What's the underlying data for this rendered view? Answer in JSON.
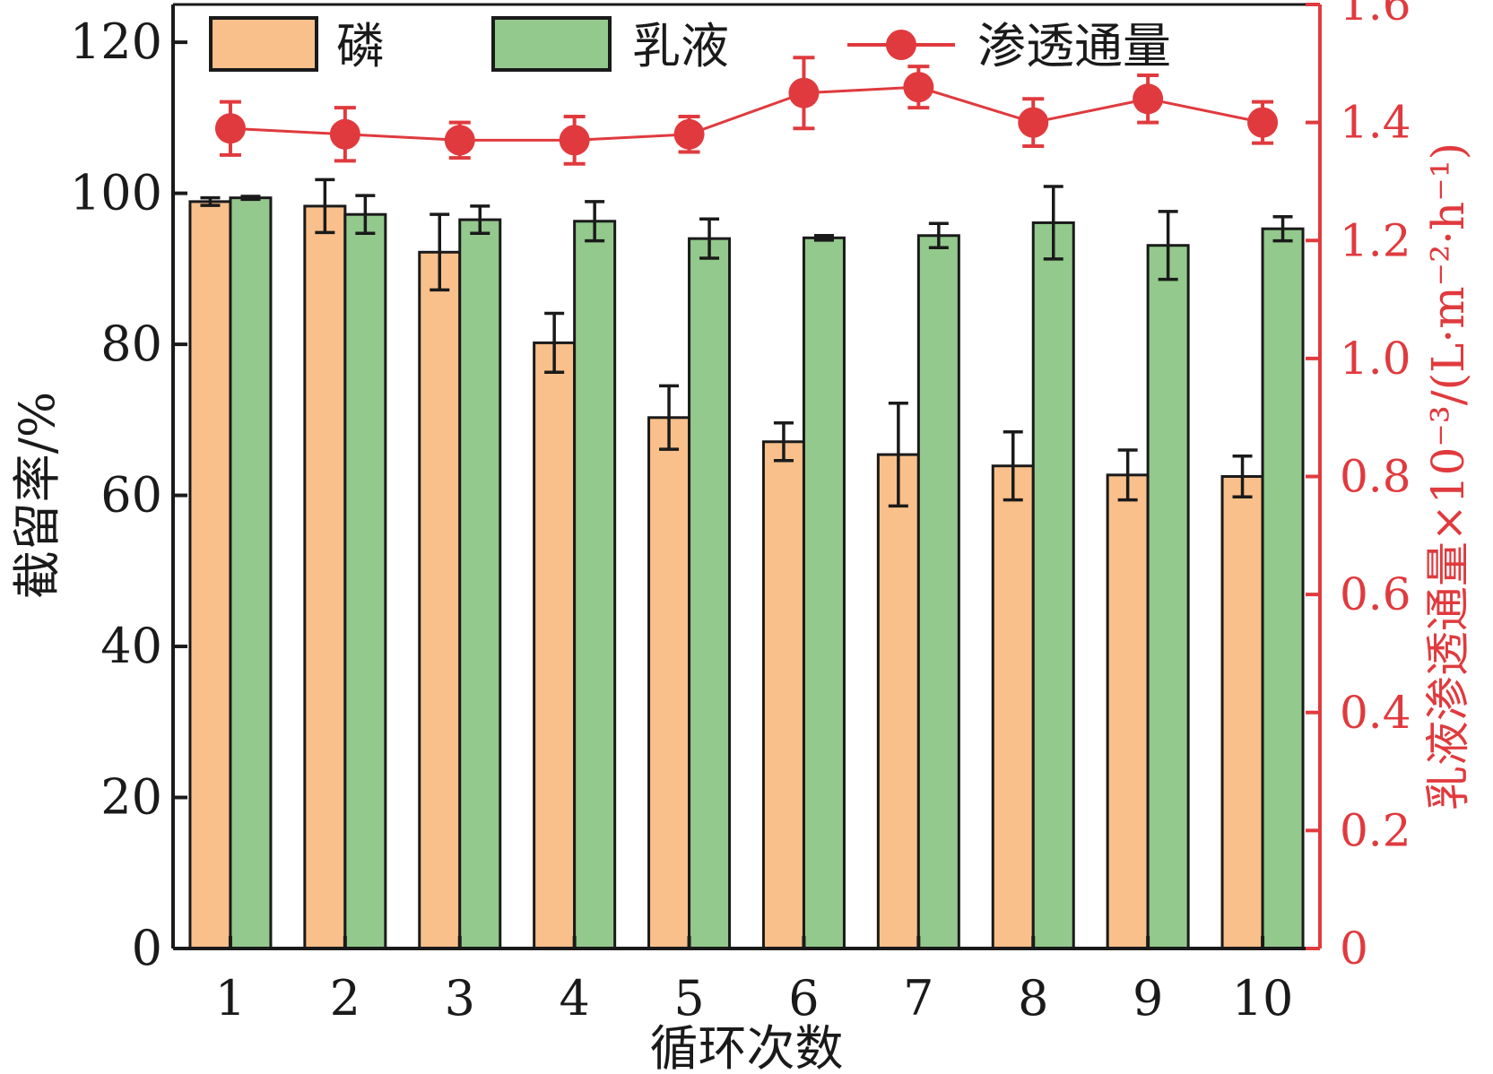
{
  "chart_data": {
    "type": "bar",
    "categories": [
      "1",
      "2",
      "3",
      "4",
      "5",
      "6",
      "7",
      "8",
      "9",
      "10"
    ],
    "xlabel": "循环次数",
    "ylabel": "截留率/%",
    "ylim": [
      0,
      125
    ],
    "yticks": [
      0,
      20,
      40,
      60,
      80,
      100,
      120
    ],
    "y2label": "乳液渗透通量×10⁻³/(L·m⁻²·h⁻¹)",
    "y2lim": [
      0,
      1.6
    ],
    "y2ticks": [
      "0",
      "0.2",
      "0.4",
      "0.6",
      "0.8",
      "1.0",
      "1.2",
      "1.4",
      "1.6"
    ],
    "grid": false,
    "legend_position": "top",
    "series": [
      {
        "name": "磷",
        "kind": "bar",
        "axis": "left",
        "color": "#f9c08b",
        "values": [
          98.9,
          98.3,
          92.2,
          80.2,
          70.3,
          67.1,
          65.4,
          63.9,
          62.7,
          62.5
        ],
        "errors": [
          0.5,
          3.5,
          5.0,
          3.9,
          4.2,
          2.5,
          6.8,
          4.5,
          3.3,
          2.7
        ]
      },
      {
        "name": "乳液",
        "kind": "bar",
        "axis": "left",
        "color": "#93c98c",
        "values": [
          99.4,
          97.2,
          96.5,
          96.3,
          94.0,
          94.1,
          94.4,
          96.1,
          93.1,
          95.3
        ],
        "errors": [
          0.2,
          2.5,
          1.8,
          2.6,
          2.6,
          0.3,
          1.6,
          4.8,
          4.5,
          1.6
        ]
      },
      {
        "name": "渗透通量",
        "kind": "line",
        "axis": "right",
        "color": "#e03a3e",
        "values": [
          1.39,
          1.38,
          1.37,
          1.37,
          1.38,
          1.45,
          1.46,
          1.4,
          1.44,
          1.4
        ],
        "errors": [
          0.045,
          0.045,
          0.03,
          0.04,
          0.03,
          0.06,
          0.035,
          0.04,
          0.04,
          0.035
        ]
      }
    ]
  }
}
